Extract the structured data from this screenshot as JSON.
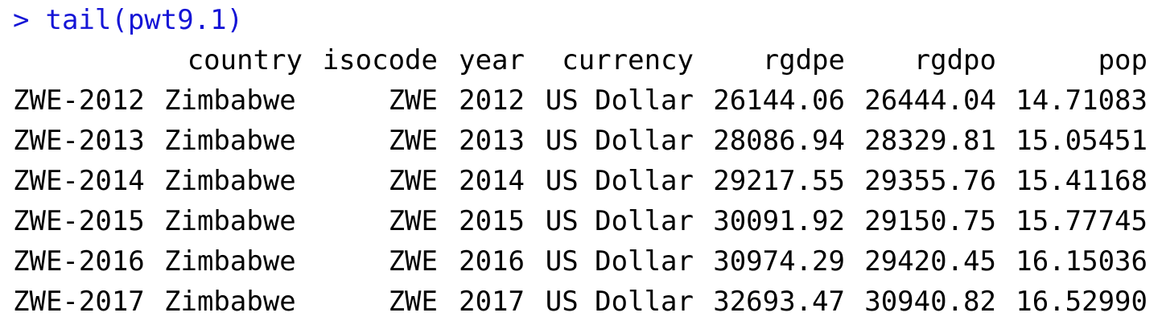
{
  "console": {
    "prompt_symbol": ">",
    "command": "tail(pwt9.1)",
    "columns": [
      "country",
      "isocode",
      "year",
      "currency",
      "rgdpe",
      "rgdpo",
      "pop"
    ],
    "rows": [
      {
        "rowname": "ZWE-2012",
        "country": "Zimbabwe",
        "isocode": "ZWE",
        "year": "2012",
        "currency": "US Dollar",
        "rgdpe": "26144.06",
        "rgdpo": "26444.04",
        "pop": "14.71083"
      },
      {
        "rowname": "ZWE-2013",
        "country": "Zimbabwe",
        "isocode": "ZWE",
        "year": "2013",
        "currency": "US Dollar",
        "rgdpe": "28086.94",
        "rgdpo": "28329.81",
        "pop": "15.05451"
      },
      {
        "rowname": "ZWE-2014",
        "country": "Zimbabwe",
        "isocode": "ZWE",
        "year": "2014",
        "currency": "US Dollar",
        "rgdpe": "29217.55",
        "rgdpo": "29355.76",
        "pop": "15.41168"
      },
      {
        "rowname": "ZWE-2015",
        "country": "Zimbabwe",
        "isocode": "ZWE",
        "year": "2015",
        "currency": "US Dollar",
        "rgdpe": "30091.92",
        "rgdpo": "29150.75",
        "pop": "15.77745"
      },
      {
        "rowname": "ZWE-2016",
        "country": "Zimbabwe",
        "isocode": "ZWE",
        "year": "2016",
        "currency": "US Dollar",
        "rgdpe": "30974.29",
        "rgdpo": "29420.45",
        "pop": "16.15036"
      },
      {
        "rowname": "ZWE-2017",
        "country": "Zimbabwe",
        "isocode": "ZWE",
        "year": "2017",
        "currency": "US Dollar",
        "rgdpe": "32693.47",
        "rgdpo": "30940.82",
        "pop": "16.52990"
      }
    ],
    "colors": {
      "prompt": "#1515d6",
      "output": "#000000",
      "background": "#ffffff"
    }
  }
}
